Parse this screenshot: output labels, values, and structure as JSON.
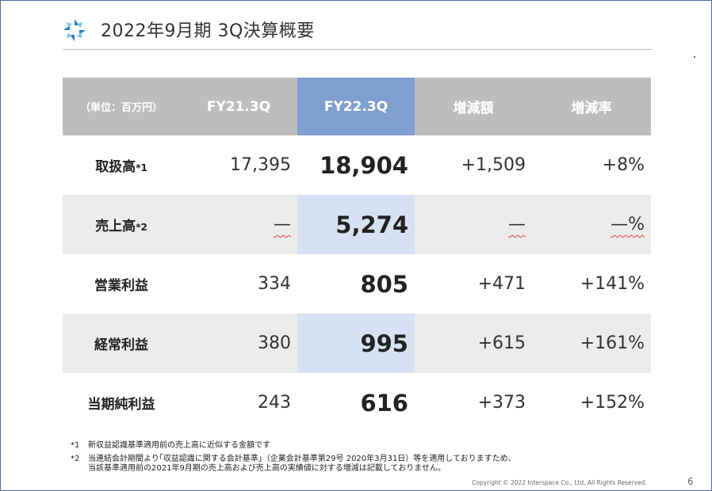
{
  "slide": {
    "title": "2022年9月期 3Q決算概要",
    "page_number": "6",
    "copyright": "Copyright ©  2022  Interspace  Co., Ltd. All Rights Reserved."
  },
  "table": {
    "headers": [
      "（単位：百万円）",
      "FY21.3Q",
      "FY22.3Q",
      "増減額",
      "増減率"
    ],
    "rows": [
      {
        "label": "取扱高",
        "mark": "*1",
        "fy21": "17,395",
        "fy22": "18,904",
        "diff": "+1,509",
        "rate": "+8%"
      },
      {
        "label": "売上高",
        "mark": "*2",
        "fy21": "—",
        "fy22": "5,274",
        "diff": "—",
        "rate": "—%"
      },
      {
        "label": "営業利益",
        "mark": "",
        "fy21": "334",
        "fy22": "805",
        "diff": "+471",
        "rate": "+141%"
      },
      {
        "label": "経常利益",
        "mark": "",
        "fy21": "380",
        "fy22": "995",
        "diff": "+615",
        "rate": "+161%"
      },
      {
        "label": "当期純利益",
        "mark": "",
        "fy21": "243",
        "fy22": "616",
        "diff": "+373",
        "rate": "+152%"
      }
    ]
  },
  "notes": [
    {
      "mark": "*1",
      "text": "新収益認識基準適用前の売上高に近似する金額です"
    },
    {
      "mark": "*2",
      "text": "当連結会計期間より｢収益認識に関する会計基準」（企業会計基準第29号 2020年3月31日）等を適用しておりますため、\n当該基準適用前の2021年9月期の売上高および売上高の実績値に対する増減は記載しておりません。"
    }
  ],
  "colors": {
    "header_gray": "#bdbdbd",
    "header_blue": "#7f9fd0",
    "highlight_cell": "#d6e2f3",
    "shade_row": "#ececec",
    "border": "#4f6fa8"
  },
  "icons": {
    "logo": "company-logo-icon"
  }
}
